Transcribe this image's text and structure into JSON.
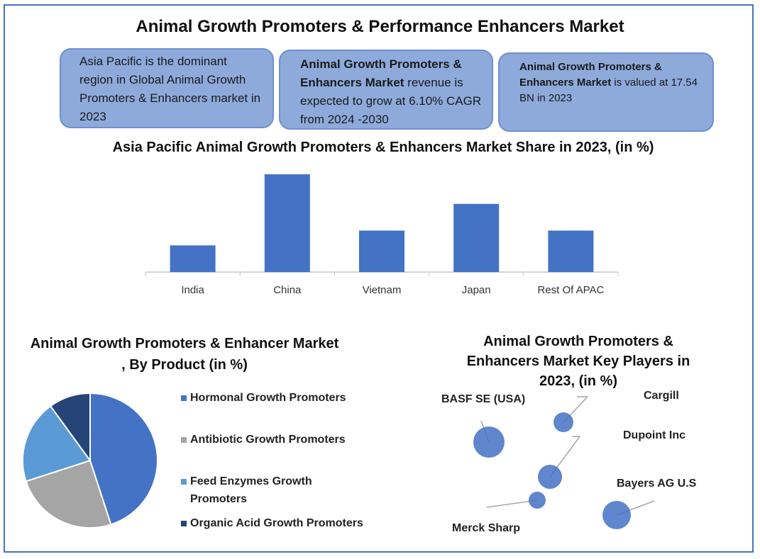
{
  "title": "Animal Growth Promoters & Performance Enhancers Market",
  "info_boxes": {
    "box1": {
      "text": "Asia Pacific is the dominant region in Global Animal Growth Promoters & Enhancers market in 2023"
    },
    "box2": {
      "bold": "Animal Growth Promoters & Enhancers Market",
      "text": " revenue is expected to grow at 6.10% CAGR from 2024 -2030"
    },
    "box3": {
      "bold": "Animal Growth Promoters & Enhancers Market",
      "text": " is valued at 17.54 BN in 2023"
    }
  },
  "colors": {
    "bar": "#4472c4",
    "hormonal": "#4472c4",
    "antibiotic": "#a5a5a5",
    "enzymes": "#5b9bd5",
    "organic": "#264478",
    "bubble": "#4472c4",
    "info_box": "#8eaadb"
  },
  "chart_data": [
    {
      "type": "bar",
      "title": "Asia Pacific Animal Growth Promoters & Enhancers  Market Share in 2023,  (in %)",
      "categories": [
        "India",
        "China",
        "Vietnam",
        "Japan",
        "Rest Of APAC"
      ],
      "values": [
        9,
        33,
        14,
        23,
        14
      ],
      "ylim": [
        0,
        33
      ],
      "grid": false,
      "xlabel": "",
      "ylabel": ""
    },
    {
      "type": "pie",
      "title": "Animal Growth Promoters & Enhancer Market , By Product  (in %)",
      "categories": [
        "Hormonal Growth Promoters",
        "Antibiotic Growth Promoters",
        "Feed Enzymes Growth Promoters",
        "Organic Acid Growth Promoters"
      ],
      "values": [
        45,
        25,
        20,
        10
      ],
      "legend": "right"
    },
    {
      "type": "scatter",
      "title": "Animal Growth Promoters & Enhancers Market Key Players in 2023, (in %)",
      "series": [
        {
          "name": "BASF SE (USA)",
          "x": 0,
          "y": 0,
          "size": 22
        },
        {
          "name": "Cargill",
          "x": 0,
          "y": 0,
          "size": 14
        },
        {
          "name": "Dupoint Inc",
          "x": 0,
          "y": 0,
          "size": 17
        },
        {
          "name": "Merck Sharp",
          "x": 0,
          "y": 0,
          "size": 12
        },
        {
          "name": "Bayers AG U.S",
          "x": 0,
          "y": 0,
          "size": 20
        }
      ]
    }
  ]
}
